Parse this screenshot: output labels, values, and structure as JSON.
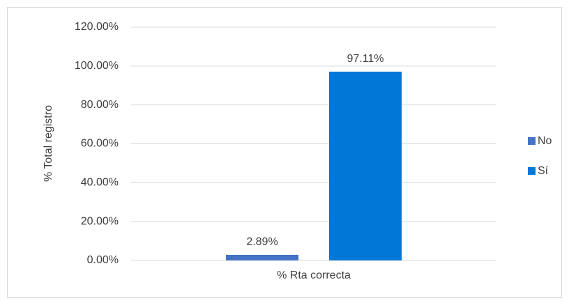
{
  "chart_data": {
    "type": "bar",
    "categories": [
      "% Rta correcta"
    ],
    "series": [
      {
        "name": "No",
        "color": "#4472c4",
        "values": [
          2.89
        ],
        "value_labels": [
          "2.89%"
        ]
      },
      {
        "name": "Sí",
        "color": "#0078d7",
        "values": [
          97.11
        ],
        "value_labels": [
          "97.11%"
        ]
      }
    ],
    "y_label": "% Total registro",
    "ylim": [
      0,
      120
    ],
    "yticks": [
      {
        "value": 0,
        "label": "0.00%"
      },
      {
        "value": 20,
        "label": "20.00%"
      },
      {
        "value": 40,
        "label": "40.00%"
      },
      {
        "value": 60,
        "label": "60.00%"
      },
      {
        "value": 80,
        "label": "80.00%"
      },
      {
        "value": 100,
        "label": "100.00%"
      },
      {
        "value": 120,
        "label": "120.00%"
      }
    ],
    "grid": true,
    "legend": "right"
  }
}
